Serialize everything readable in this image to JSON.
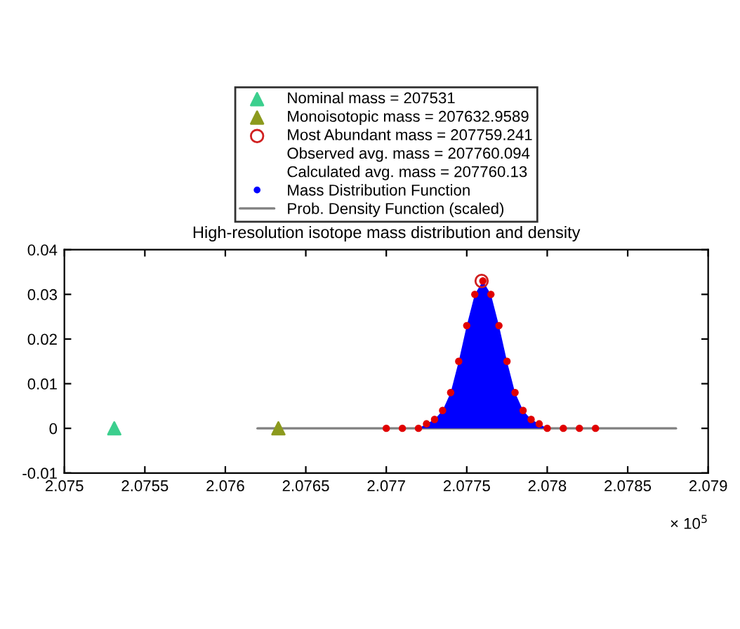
{
  "chart_data": {
    "type": "scatter",
    "title": "High-resolution isotope mass distribution and density",
    "series": [
      {
        "name": "Nominal mass = 207531",
        "marker": "triangle",
        "color": "#3ccf8e",
        "x": [
          2.07531
        ],
        "values": [
          0
        ]
      },
      {
        "name": "Monoisotopic mass = 207632.9589",
        "marker": "triangle",
        "color": "#8c9a1e",
        "x": [
          2.076329589
        ],
        "values": [
          0
        ]
      },
      {
        "name": "Most Abundant mass = 207759.241",
        "marker": "circle",
        "color": "#d02020",
        "x": [
          2.07759241
        ],
        "values": [
          0.033
        ]
      },
      {
        "name": "Mass Distribution Function",
        "type": "area",
        "color": "#0000ff",
        "x": [
          2.077,
          2.0771,
          2.0772,
          2.07725,
          2.0773,
          2.07735,
          2.0774,
          2.07745,
          2.0775,
          2.07755,
          2.0776,
          2.07765,
          2.0777,
          2.07775,
          2.0778,
          2.07785,
          2.0779,
          2.07795,
          2.078,
          2.0781,
          2.0782,
          2.0783
        ],
        "values": [
          0,
          0,
          0,
          0.001,
          0.002,
          0.004,
          0.008,
          0.015,
          0.023,
          0.03,
          0.033,
          0.03,
          0.023,
          0.015,
          0.008,
          0.004,
          0.002,
          0.001,
          0,
          0,
          0,
          0
        ]
      },
      {
        "marker": "circle",
        "color": "#e00000",
        "x": [
          2.077,
          2.0771,
          2.0772,
          2.07725,
          2.0773,
          2.07735,
          2.0774,
          2.07745,
          2.0775,
          2.07755,
          2.0776,
          2.07765,
          2.0777,
          2.07775,
          2.0778,
          2.07785,
          2.0779,
          2.07795,
          2.078,
          2.0781,
          2.0782,
          2.0783
        ],
        "values": [
          0,
          0,
          0,
          0.001,
          0.002,
          0.004,
          0.008,
          0.015,
          0.023,
          0.03,
          0.033,
          0.03,
          0.023,
          0.015,
          0.008,
          0.004,
          0.002,
          0.001,
          0,
          0,
          0,
          0
        ]
      },
      {
        "name": "Prob. Density Function (scaled)",
        "type": "line",
        "color": "#808080",
        "x": [
          2.0762,
          2.0788
        ],
        "values": [
          0,
          0
        ]
      }
    ],
    "annotations": [
      "Observed avg. mass = 207760.094",
      "Calculated avg. mass = 207760.13",
      "× 10$^{5}$"
    ],
    "xlim": [
      2.075,
      2.079
    ],
    "xticks": [
      2.075,
      2.0755,
      2.076,
      2.0765,
      2.077,
      2.0775,
      2.078,
      2.0785,
      2.079
    ],
    "ylim": [
      -0.01,
      0.04
    ],
    "yticks": [
      -0.01,
      0,
      0.01,
      0.02,
      0.03,
      0.04
    ],
    "grid": false,
    "legend": "top"
  }
}
